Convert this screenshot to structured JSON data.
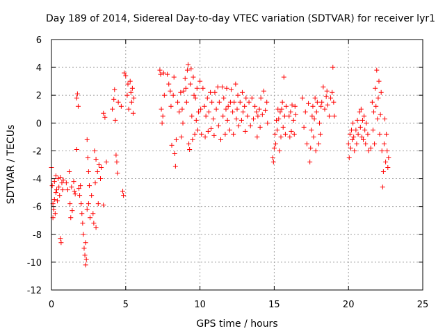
{
  "chart_data": {
    "type": "scatter",
    "title": "Day 189 of 2014, Sidereal Day-to-day VTEC variation (SDTVAR) for receiver lyr1",
    "xlabel": "GPS time / hours",
    "ylabel": "SDTVAR / TECUs",
    "xlim": [
      0,
      25
    ],
    "ylim": [
      -12,
      6
    ],
    "xticks": [
      0,
      5,
      10,
      15,
      20,
      25
    ],
    "yticks": [
      -12,
      -10,
      -8,
      -6,
      -4,
      -2,
      0,
      2,
      4,
      6
    ],
    "xtick_labels": [
      "0",
      "5",
      "10",
      "15",
      "20",
      "25"
    ],
    "ytick_labels": [
      "-12",
      "-10",
      "-8",
      "-6",
      "-4",
      "-2",
      "0",
      "2",
      "4",
      "6"
    ],
    "grid": true,
    "marker": "+",
    "color": "#ff0000",
    "series": [
      {
        "name": "SDTVAR",
        "points": [
          [
            0.0,
            -3.2
          ],
          [
            0.05,
            -4.5
          ],
          [
            0.1,
            -5.8
          ],
          [
            0.1,
            -6.8
          ],
          [
            0.15,
            -6.2
          ],
          [
            0.2,
            -5.5
          ],
          [
            0.2,
            -4.2
          ],
          [
            0.25,
            -6.5
          ],
          [
            0.3,
            -3.8
          ],
          [
            0.3,
            -5.0
          ],
          [
            0.35,
            -4.8
          ],
          [
            0.4,
            -5.6
          ],
          [
            0.45,
            -4.0
          ],
          [
            0.5,
            -4.6
          ],
          [
            0.55,
            -5.2
          ],
          [
            0.6,
            -3.9
          ],
          [
            0.6,
            -8.3
          ],
          [
            0.65,
            -8.6
          ],
          [
            0.7,
            -4.3
          ],
          [
            0.75,
            -4.8
          ],
          [
            0.8,
            -4.1
          ],
          [
            1.0,
            -4.3
          ],
          [
            1.1,
            -4.8
          ],
          [
            1.2,
            -3.5
          ],
          [
            1.25,
            -5.8
          ],
          [
            1.3,
            -6.8
          ],
          [
            1.35,
            -4.6
          ],
          [
            1.4,
            -6.3
          ],
          [
            1.5,
            -4.2
          ],
          [
            1.55,
            -4.9
          ],
          [
            1.6,
            -5.1
          ],
          [
            1.7,
            -1.9
          ],
          [
            1.7,
            1.8
          ],
          [
            1.75,
            2.1
          ],
          [
            1.8,
            1.2
          ],
          [
            1.85,
            -4.7
          ],
          [
            1.9,
            -5.2
          ],
          [
            1.95,
            -4.5
          ],
          [
            2.0,
            -5.8
          ],
          [
            2.05,
            -6.5
          ],
          [
            2.1,
            -7.2
          ],
          [
            2.15,
            -8.0
          ],
          [
            2.2,
            -9.0
          ],
          [
            2.25,
            -9.5
          ],
          [
            2.3,
            -10.2
          ],
          [
            2.3,
            -8.6
          ],
          [
            2.35,
            -9.8
          ],
          [
            2.4,
            -6.2
          ],
          [
            2.4,
            -1.2
          ],
          [
            2.45,
            -2.5
          ],
          [
            2.5,
            -3.5
          ],
          [
            2.5,
            -5.8
          ],
          [
            2.55,
            -4.5
          ],
          [
            2.6,
            -6.8
          ],
          [
            2.7,
            -5.2
          ],
          [
            2.8,
            -6.5
          ],
          [
            2.85,
            -7.2
          ],
          [
            2.9,
            -2.0
          ],
          [
            2.95,
            -4.3
          ],
          [
            3.0,
            -7.5
          ],
          [
            3.0,
            -2.6
          ],
          [
            3.1,
            -3.5
          ],
          [
            3.15,
            -5.8
          ],
          [
            3.2,
            -3.0
          ],
          [
            3.3,
            -4.0
          ],
          [
            3.35,
            -3.2
          ],
          [
            3.5,
            -5.9
          ],
          [
            3.5,
            0.7
          ],
          [
            3.6,
            0.4
          ],
          [
            3.7,
            -2.8
          ],
          [
            4.1,
            1.0
          ],
          [
            4.2,
            1.7
          ],
          [
            4.25,
            2.4
          ],
          [
            4.3,
            0.2
          ],
          [
            4.35,
            -2.3
          ],
          [
            4.4,
            -2.8
          ],
          [
            4.45,
            -3.6
          ],
          [
            4.5,
            1.5
          ],
          [
            4.7,
            1.2
          ],
          [
            4.8,
            -4.9
          ],
          [
            4.85,
            -5.2
          ],
          [
            4.9,
            3.6
          ],
          [
            5.0,
            3.4
          ],
          [
            5.1,
            2.0
          ],
          [
            5.15,
            2.8
          ],
          [
            5.2,
            1.0
          ],
          [
            5.3,
            3.0
          ],
          [
            5.35,
            2.2
          ],
          [
            5.4,
            1.5
          ],
          [
            5.45,
            2.5
          ],
          [
            5.5,
            0.7
          ],
          [
            5.55,
            1.8
          ],
          [
            7.3,
            3.8
          ],
          [
            7.35,
            3.5
          ],
          [
            7.4,
            1.0
          ],
          [
            7.45,
            0.0
          ],
          [
            7.5,
            0.5
          ],
          [
            7.55,
            3.6
          ],
          [
            7.6,
            2.0
          ],
          [
            7.8,
            3.5
          ],
          [
            7.9,
            2.8
          ],
          [
            8.0,
            2.3
          ],
          [
            8.05,
            1.2
          ],
          [
            8.1,
            -1.6
          ],
          [
            8.2,
            2.0
          ],
          [
            8.25,
            3.3
          ],
          [
            8.3,
            -2.2
          ],
          [
            8.35,
            -3.1
          ],
          [
            8.4,
            -1.2
          ],
          [
            8.5,
            1.5
          ],
          [
            8.6,
            0.8
          ],
          [
            8.7,
            2.2
          ],
          [
            8.75,
            -1.0
          ],
          [
            8.8,
            1.0
          ],
          [
            8.85,
            0.0
          ],
          [
            8.9,
            2.3
          ],
          [
            9.0,
            3.2
          ],
          [
            9.05,
            2.5
          ],
          [
            9.1,
            1.5
          ],
          [
            9.15,
            3.8
          ],
          [
            9.2,
            4.2
          ],
          [
            9.25,
            -1.5
          ],
          [
            9.3,
            -1.9
          ],
          [
            9.35,
            2.8
          ],
          [
            9.4,
            3.9
          ],
          [
            9.45,
            0.5
          ],
          [
            9.5,
            -1.2
          ],
          [
            9.55,
            3.3
          ],
          [
            9.6,
            2.0
          ],
          [
            9.65,
            -0.8
          ],
          [
            9.7,
            1.8
          ],
          [
            9.75,
            0.2
          ],
          [
            9.8,
            2.5
          ],
          [
            9.85,
            -0.5
          ],
          [
            9.9,
            0.8
          ],
          [
            10.0,
            3.0
          ],
          [
            10.05,
            1.0
          ],
          [
            10.1,
            -0.8
          ],
          [
            10.2,
            2.5
          ],
          [
            10.3,
            1.2
          ],
          [
            10.35,
            -1.0
          ],
          [
            10.4,
            0.5
          ],
          [
            10.5,
            1.8
          ],
          [
            10.55,
            -0.6
          ],
          [
            10.6,
            0.8
          ],
          [
            10.7,
            2.2
          ],
          [
            10.75,
            -0.4
          ],
          [
            10.8,
            1.5
          ],
          [
            10.9,
            0.3
          ],
          [
            10.95,
            -0.9
          ],
          [
            11.0,
            2.2
          ],
          [
            11.1,
            1.0
          ],
          [
            11.2,
            2.6
          ],
          [
            11.25,
            -0.2
          ],
          [
            11.3,
            1.5
          ],
          [
            11.4,
            -1.2
          ],
          [
            11.5,
            2.6
          ],
          [
            11.55,
            0.5
          ],
          [
            11.6,
            1.8
          ],
          [
            11.7,
            -0.8
          ],
          [
            11.75,
            1.0
          ],
          [
            11.8,
            2.5
          ],
          [
            11.85,
            0.2
          ],
          [
            11.9,
            1.2
          ],
          [
            12.0,
            -0.5
          ],
          [
            12.05,
            1.5
          ],
          [
            12.1,
            2.4
          ],
          [
            12.2,
            0.8
          ],
          [
            12.25,
            -0.8
          ],
          [
            12.3,
            1.5
          ],
          [
            12.4,
            2.8
          ],
          [
            12.45,
            0.3
          ],
          [
            12.5,
            1.0
          ],
          [
            12.55,
            2.0
          ],
          [
            12.6,
            -0.2
          ],
          [
            12.7,
            1.5
          ],
          [
            12.8,
            0.2
          ],
          [
            12.85,
            2.2
          ],
          [
            12.9,
            0.8
          ],
          [
            13.0,
            1.2
          ],
          [
            13.05,
            -0.6
          ],
          [
            13.1,
            1.8
          ],
          [
            13.2,
            0.5
          ],
          [
            13.3,
            1.5
          ],
          [
            13.4,
            -0.2
          ],
          [
            13.5,
            1.8
          ],
          [
            13.6,
            0.3
          ],
          [
            13.7,
            1.2
          ],
          [
            13.8,
            0.8
          ],
          [
            13.85,
            -1.0
          ],
          [
            13.9,
            0.5
          ],
          [
            14.0,
            1.0
          ],
          [
            14.05,
            -0.3
          ],
          [
            14.1,
            1.8
          ],
          [
            14.2,
            0.6
          ],
          [
            14.3,
            2.3
          ],
          [
            14.4,
            0.9
          ],
          [
            14.5,
            1.5
          ],
          [
            14.55,
            0.0
          ],
          [
            14.9,
            -2.5
          ],
          [
            14.95,
            -2.8
          ],
          [
            15.0,
            -1.8
          ],
          [
            15.05,
            -0.8
          ],
          [
            15.1,
            -1.5
          ],
          [
            15.15,
            0.2
          ],
          [
            15.2,
            -0.5
          ],
          [
            15.25,
            1.0
          ],
          [
            15.3,
            0.3
          ],
          [
            15.35,
            -2.0
          ],
          [
            15.4,
            0.8
          ],
          [
            15.45,
            -1.0
          ],
          [
            15.5,
            1.0
          ],
          [
            15.55,
            1.5
          ],
          [
            15.6,
            -0.3
          ],
          [
            15.65,
            3.3
          ],
          [
            15.7,
            0.5
          ],
          [
            15.75,
            -0.8
          ],
          [
            15.8,
            1.2
          ],
          [
            16.0,
            0.5
          ],
          [
            16.05,
            -1.0
          ],
          [
            16.1,
            0.8
          ],
          [
            16.15,
            -0.6
          ],
          [
            16.2,
            1.3
          ],
          [
            16.3,
            0.2
          ],
          [
            16.35,
            -0.8
          ],
          [
            16.4,
            1.2
          ],
          [
            16.45,
            0.6
          ],
          [
            16.9,
            1.8
          ],
          [
            17.0,
            -0.3
          ],
          [
            17.1,
            0.8
          ],
          [
            17.2,
            -1.5
          ],
          [
            17.3,
            1.4
          ],
          [
            17.4,
            -2.8
          ],
          [
            17.45,
            -1.8
          ],
          [
            17.5,
            -0.5
          ],
          [
            17.55,
            0.5
          ],
          [
            17.6,
            1.2
          ],
          [
            17.65,
            -1.0
          ],
          [
            17.7,
            0.3
          ],
          [
            17.75,
            1.8
          ],
          [
            17.8,
            -2.0
          ],
          [
            17.85,
            0.8
          ],
          [
            17.9,
            1.5
          ],
          [
            18.0,
            -1.5
          ],
          [
            18.05,
            0.0
          ],
          [
            18.1,
            -0.8
          ],
          [
            18.15,
            1.2
          ],
          [
            18.2,
            1.5
          ],
          [
            18.3,
            2.6
          ],
          [
            18.4,
            1.0
          ],
          [
            18.5,
            1.9
          ],
          [
            18.55,
            2.3
          ],
          [
            18.6,
            1.3
          ],
          [
            18.7,
            0.5
          ],
          [
            18.8,
            1.8
          ],
          [
            18.9,
            2.2
          ],
          [
            18.95,
            4.0
          ],
          [
            19.0,
            1.5
          ],
          [
            19.05,
            0.5
          ],
          [
            20.0,
            -1.5
          ],
          [
            20.05,
            -2.5
          ],
          [
            20.1,
            -0.8
          ],
          [
            20.15,
            -1.8
          ],
          [
            20.2,
            -0.5
          ],
          [
            20.25,
            -1.2
          ],
          [
            20.3,
            0.0
          ],
          [
            20.35,
            -1.0
          ],
          [
            20.4,
            -2.0
          ],
          [
            20.5,
            -0.5
          ],
          [
            20.55,
            -1.5
          ],
          [
            20.6,
            0.2
          ],
          [
            20.65,
            -0.8
          ],
          [
            20.75,
            0.8
          ],
          [
            20.8,
            -0.3
          ],
          [
            20.85,
            1.0
          ],
          [
            20.9,
            -1.0
          ],
          [
            20.95,
            0.2
          ],
          [
            21.0,
            -1.2
          ],
          [
            21.05,
            0.5
          ],
          [
            21.1,
            -0.5
          ],
          [
            21.15,
            -1.5
          ],
          [
            21.2,
            0.0
          ],
          [
            21.3,
            -0.8
          ],
          [
            21.35,
            -2.0
          ],
          [
            21.5,
            -1.8
          ],
          [
            21.6,
            1.5
          ],
          [
            21.65,
            -0.5
          ],
          [
            21.7,
            0.8
          ],
          [
            21.75,
            -1.5
          ],
          [
            21.8,
            2.5
          ],
          [
            21.85,
            1.2
          ],
          [
            21.9,
            3.8
          ],
          [
            21.95,
            0.3
          ],
          [
            22.0,
            1.8
          ],
          [
            22.05,
            3.0
          ],
          [
            22.1,
            -0.8
          ],
          [
            22.15,
            0.6
          ],
          [
            22.2,
            2.2
          ],
          [
            22.25,
            -2.0
          ],
          [
            22.3,
            -4.6
          ],
          [
            22.35,
            -3.5
          ],
          [
            22.4,
            -1.5
          ],
          [
            22.45,
            0.3
          ],
          [
            22.5,
            -2.8
          ],
          [
            22.55,
            -0.8
          ],
          [
            22.6,
            -2.0
          ],
          [
            22.65,
            -3.2
          ],
          [
            22.7,
            -2.5
          ]
        ]
      }
    ]
  }
}
